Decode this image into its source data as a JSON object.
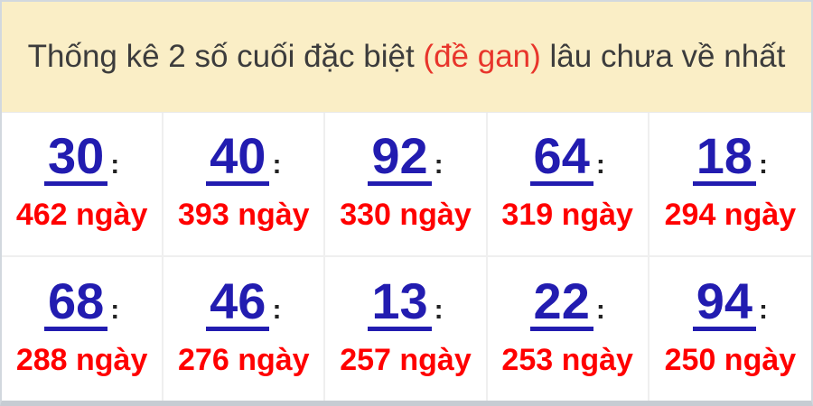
{
  "header": {
    "prefix": "Thống kê 2 số cuối đặc biệt ",
    "highlight": "(đề gan)",
    "suffix": " lâu chưa về nhất"
  },
  "cells": [
    {
      "number": "30",
      "separator": ":",
      "days": "462 ngày"
    },
    {
      "number": "40",
      "separator": ":",
      "days": "393 ngày"
    },
    {
      "number": "92",
      "separator": ":",
      "days": "330 ngày"
    },
    {
      "number": "64",
      "separator": ":",
      "days": "319 ngày"
    },
    {
      "number": "18",
      "separator": ":",
      "days": "294 ngày"
    },
    {
      "number": "68",
      "separator": ":",
      "days": "288 ngày"
    },
    {
      "number": "46",
      "separator": ":",
      "days": "276 ngày"
    },
    {
      "number": "13",
      "separator": ":",
      "days": "257 ngày"
    },
    {
      "number": "22",
      "separator": ":",
      "days": "253 ngày"
    },
    {
      "number": "94",
      "separator": ":",
      "days": "250 ngày"
    }
  ],
  "colors": {
    "header_bg": "#faeec6",
    "header_text": "#3c3c3c",
    "highlight_red": "#e8352b",
    "number_blue": "#221cb0",
    "days_red": "#ff0000",
    "cell_border": "#efefef",
    "outer_border": "#d2d8de",
    "outer_border_bottom": "#c6ccd3"
  }
}
